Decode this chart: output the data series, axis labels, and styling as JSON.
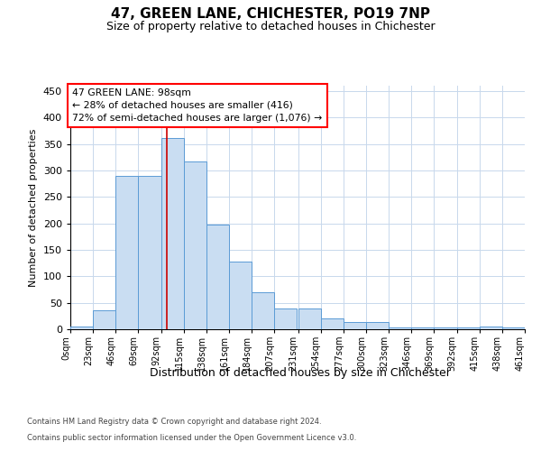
{
  "title1": "47, GREEN LANE, CHICHESTER, PO19 7NP",
  "title2": "Size of property relative to detached houses in Chichester",
  "xlabel": "Distribution of detached houses by size in Chichester",
  "ylabel": "Number of detached properties",
  "bin_edges": [
    0,
    23,
    46,
    69,
    92,
    115,
    138,
    161,
    184,
    207,
    231,
    254,
    277,
    300,
    323,
    346,
    369,
    392,
    415,
    438,
    461
  ],
  "bar_heights": [
    5,
    35,
    290,
    290,
    362,
    317,
    197,
    128,
    70,
    40,
    40,
    20,
    13,
    13,
    3,
    3,
    3,
    3,
    5,
    3
  ],
  "bar_color": "#c9ddf2",
  "bar_edge_color": "#5b9bd5",
  "vline_x": 98,
  "vline_color": "#cc0000",
  "annotation_line1": "47 GREEN LANE: 98sqm",
  "annotation_line2": "← 28% of detached houses are smaller (416)",
  "annotation_line3": "72% of semi-detached houses are larger (1,076) →",
  "ylim": [
    0,
    460
  ],
  "yticks": [
    0,
    50,
    100,
    150,
    200,
    250,
    300,
    350,
    400,
    450
  ],
  "grid_color": "#c8d8ec",
  "footer_line1": "Contains HM Land Registry data © Crown copyright and database right 2024.",
  "footer_line2": "Contains public sector information licensed under the Open Government Licence v3.0.",
  "bg_color": "#ffffff"
}
